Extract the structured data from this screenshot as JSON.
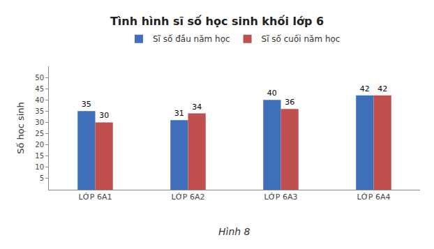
{
  "chart_data": {
    "type": "bar",
    "title": "Tình hình sĩ số học sinh khối lớp 6",
    "y_label": "Số học sinh",
    "categories": [
      "LỚP 6A1",
      "LỚP 6A2",
      "LỚP 6A3",
      "LỚP 6A4"
    ],
    "series": [
      {
        "name": "Sĩ số đầu năm học",
        "color": "#3f6fba",
        "values": [
          35,
          31,
          40,
          42
        ]
      },
      {
        "name": "Sĩ số cuối năm học",
        "color": "#c0504d",
        "values": [
          30,
          34,
          36,
          42
        ]
      }
    ],
    "ylim": [
      0,
      55
    ],
    "yticks": [
      5,
      10,
      15,
      20,
      25,
      30,
      35,
      40,
      45,
      50
    ],
    "grid": false,
    "legend": "top",
    "data_labels": true,
    "annotations": [
      {
        "text": "Hình 8"
      }
    ]
  }
}
